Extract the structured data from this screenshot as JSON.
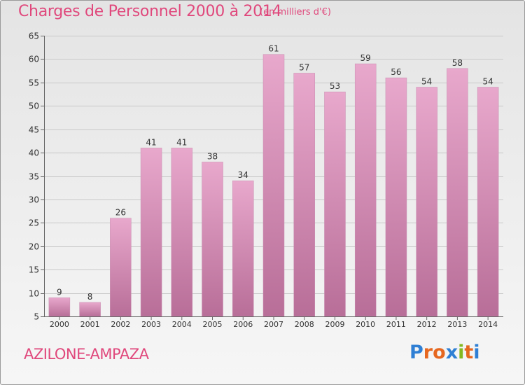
{
  "header": {
    "title": "Charges de Personnel 2000 à 2014",
    "unit": "(en milliers d'€)"
  },
  "footer": {
    "commune": "AZILONE-AMPAZA",
    "logo_text": "Proxiti",
    "logo_colors": [
      "#2f7fd4",
      "#e6671f",
      "#e6671f",
      "#2f7fd4",
      "#84b820",
      "#e6671f",
      "#2f7fd4"
    ]
  },
  "colors": {
    "title": "#e0487c",
    "bar_top": "#e8a8cc",
    "bar_bottom": "#b86e98",
    "grid": "#c8c8c8",
    "axis": "#666666"
  },
  "chart_data": {
    "type": "bar",
    "categories": [
      "2000",
      "2001",
      "2002",
      "2003",
      "2004",
      "2005",
      "2006",
      "2007",
      "2008",
      "2009",
      "2010",
      "2011",
      "2012",
      "2013",
      "2014"
    ],
    "values": [
      9,
      8,
      26,
      41,
      41,
      38,
      34,
      61,
      57,
      53,
      59,
      56,
      54,
      58,
      54
    ],
    "ylim": [
      5,
      65
    ],
    "yticks": [
      5,
      10,
      15,
      20,
      25,
      30,
      35,
      40,
      45,
      50,
      55,
      60,
      65
    ],
    "grid": true,
    "data_labels": true
  }
}
